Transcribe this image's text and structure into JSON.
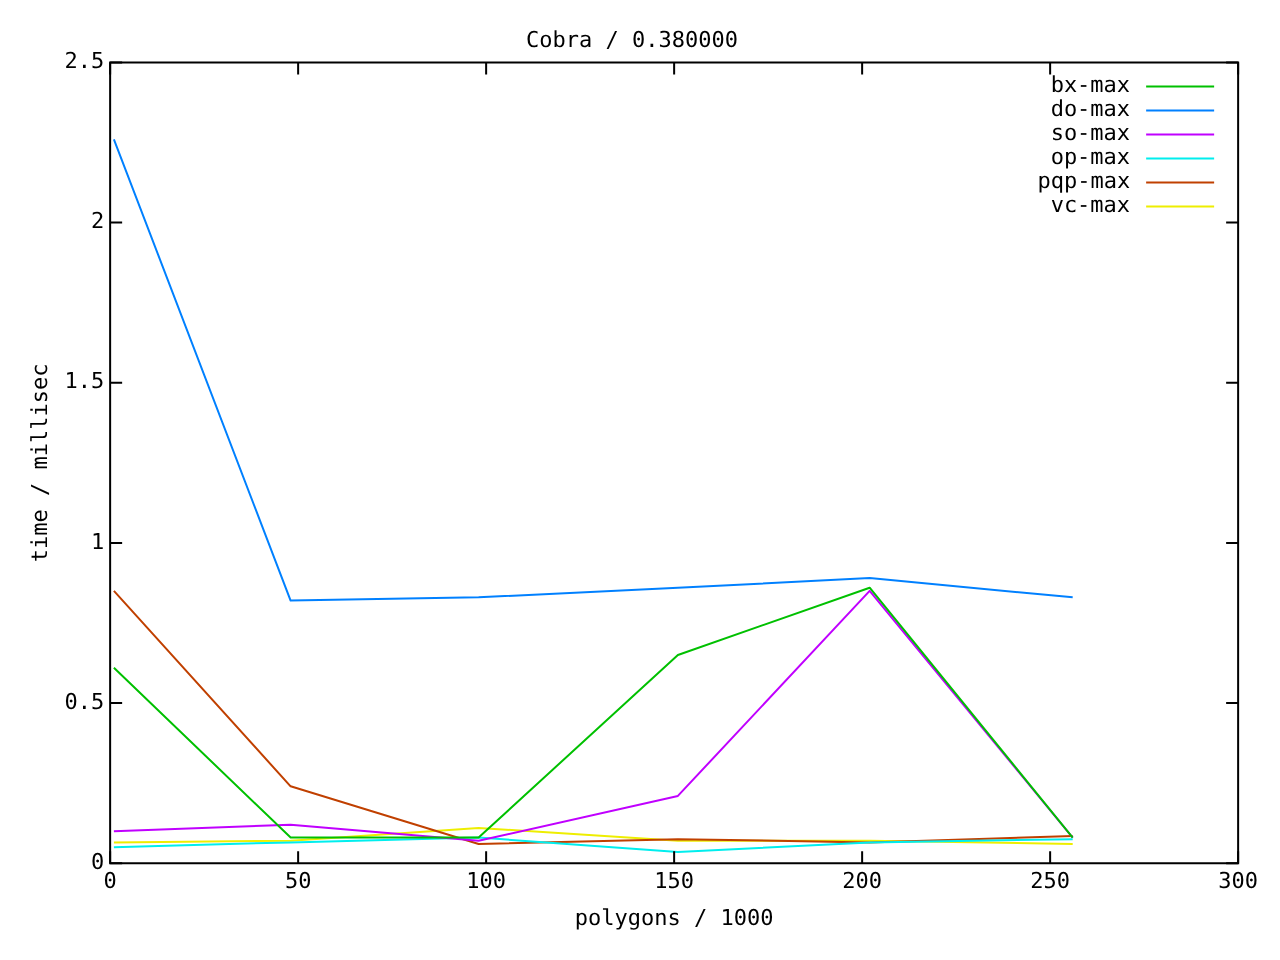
{
  "chart_data": {
    "type": "line",
    "title": "Cobra / 0.380000",
    "xlabel": "polygons / 1000",
    "ylabel": "time / millisec",
    "x": [
      1,
      48,
      98,
      151,
      202,
      256
    ],
    "series": [
      {
        "name": "bx-max",
        "color": "#00c000",
        "values": [
          0.61,
          0.08,
          0.08,
          0.65,
          0.86,
          0.08
        ]
      },
      {
        "name": "do-max",
        "color": "#0080ff",
        "values": [
          2.26,
          0.82,
          0.83,
          0.86,
          0.89,
          0.83
        ]
      },
      {
        "name": "so-max",
        "color": "#c000ff",
        "values": [
          0.1,
          0.12,
          0.07,
          0.21,
          0.85,
          0.08
        ]
      },
      {
        "name": "op-max",
        "color": "#00eeee",
        "values": [
          0.05,
          0.065,
          0.08,
          0.035,
          0.065,
          0.075
        ]
      },
      {
        "name": "pqp-max",
        "color": "#c04000",
        "values": [
          0.85,
          0.24,
          0.06,
          0.075,
          0.065,
          0.085
        ]
      },
      {
        "name": "vc-max",
        "color": "#eeee00",
        "values": [
          0.065,
          0.07,
          0.11,
          0.07,
          0.07,
          0.06
        ]
      }
    ],
    "xlim": [
      0,
      300
    ],
    "xticks": [
      0,
      50,
      100,
      150,
      200,
      250,
      300
    ],
    "ylim": [
      0,
      2.5
    ],
    "yticks": [
      0,
      0.5,
      1,
      1.5,
      2,
      2.5
    ],
    "grid": false,
    "legend": "top right",
    "marker": "none",
    "line_style": "solid"
  }
}
